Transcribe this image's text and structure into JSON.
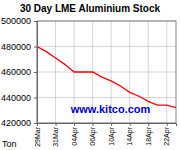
{
  "chart_data": {
    "type": "line",
    "title": "30 Day LME Aluminium Stock",
    "y_label": "Ton",
    "annotations": [
      "www.kitco.com"
    ],
    "categories": [
      "29Mar",
      null,
      "31Mar",
      null,
      "04Apr",
      null,
      "06Apr",
      null,
      "10Apr",
      null,
      "14Apr",
      null,
      "18Apr",
      null,
      "22Apr",
      null
    ],
    "values": [
      480000,
      476000,
      471000,
      466000,
      460000,
      460000,
      460000,
      456000,
      453000,
      449000,
      444000,
      441000,
      437000,
      434000,
      434000,
      432000
    ],
    "color": "#ff0000",
    "ylim": [
      420000,
      500000
    ],
    "yticks": [
      420000,
      440000,
      460000,
      480000,
      500000
    ],
    "grid": true
  }
}
